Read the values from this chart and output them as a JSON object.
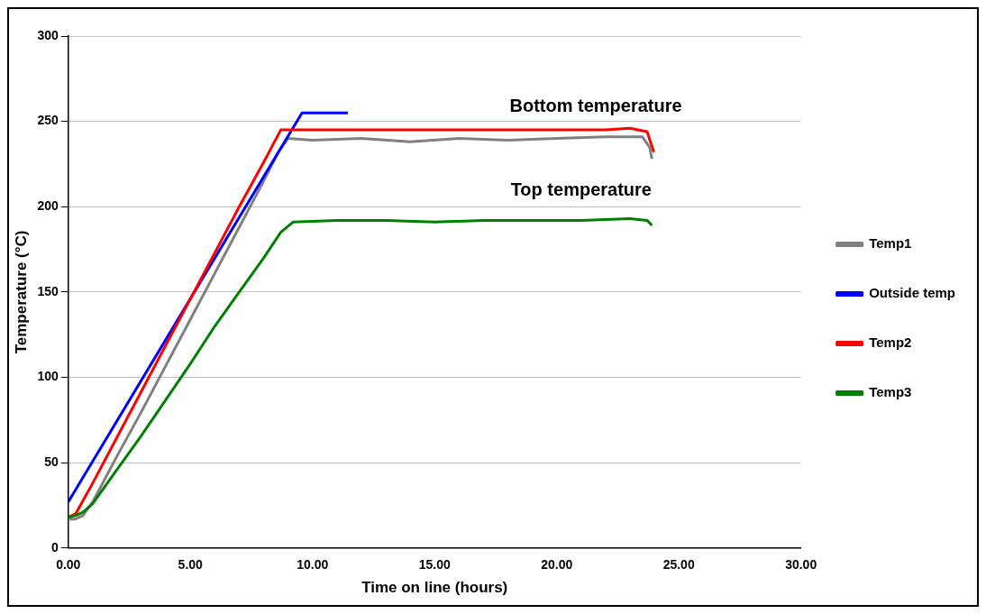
{
  "chart_data": {
    "type": "line",
    "xlabel": "Time on line (hours)",
    "ylabel": "Temperature (°C)",
    "xlim": [
      0,
      30
    ],
    "xticks": [
      {
        "value": 0,
        "label": "0.00"
      },
      {
        "value": 5,
        "label": "5.00"
      },
      {
        "value": 10,
        "label": "10.00"
      },
      {
        "value": 15,
        "label": "15.00"
      },
      {
        "value": 20,
        "label": "20.00"
      },
      {
        "value": 25,
        "label": "25.00"
      },
      {
        "value": 30,
        "label": "30.00"
      }
    ],
    "ylim": [
      0,
      300
    ],
    "yticks": [
      0,
      50,
      100,
      150,
      200,
      250,
      300
    ],
    "grid": "y",
    "legend": "right",
    "marker": "none",
    "line_style": "solid",
    "series": [
      {
        "name": "Temp1",
        "color": "#808080",
        "x": [
          0,
          0.3,
          0.6,
          1,
          2,
          3,
          4,
          5,
          6,
          7,
          8,
          8.6,
          9,
          10,
          12,
          14,
          16,
          18,
          20,
          22,
          23.5,
          23.8,
          23.9
        ],
        "values": [
          17,
          17,
          19,
          27,
          54,
          80,
          107,
          134,
          161,
          188,
          215,
          232,
          240,
          239,
          240,
          238,
          240,
          239,
          240,
          241,
          241,
          235,
          228
        ]
      },
      {
        "name": "Outside temp",
        "color": "#0000ff",
        "x": [
          0,
          9.57,
          11.45
        ],
        "values": [
          27,
          255,
          255
        ]
      },
      {
        "name": "Temp2",
        "color": "#ff0000",
        "x": [
          0,
          0.3,
          1,
          2,
          3,
          4,
          5,
          6,
          7,
          8,
          8.7,
          10,
          12,
          14,
          16,
          18,
          20,
          22,
          23,
          23.7,
          23.98
        ],
        "values": [
          18,
          20,
          38,
          65,
          92,
          119,
          146,
          173,
          200,
          226,
          245,
          245,
          245,
          245,
          245,
          245,
          245,
          245,
          246,
          244,
          232
        ]
      },
      {
        "name": "Temp3",
        "color": "#008000",
        "x": [
          0,
          0.3,
          0.6,
          1,
          2,
          3,
          4,
          5,
          6,
          7,
          8,
          8.7,
          9.2,
          11,
          13,
          15,
          17,
          19,
          21,
          23,
          23.7,
          23.9
        ],
        "values": [
          18,
          19,
          21,
          26,
          46,
          66,
          87,
          108,
          130,
          150,
          170,
          185,
          191,
          192,
          192,
          191,
          192,
          192,
          192,
          193,
          192,
          189
        ]
      }
    ],
    "annotations": [
      "Bottom temperature",
      "Top temperature"
    ]
  }
}
